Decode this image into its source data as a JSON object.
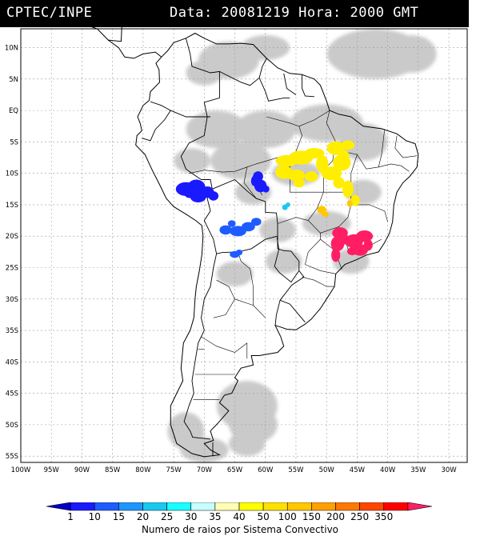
{
  "header": {
    "title": "CPTEC/INPE",
    "data_label": "Data:",
    "date": "20081219",
    "hora_label": "Hora:",
    "time": "2000 GMT"
  },
  "map": {
    "lat_labels": [
      "10N",
      "5N",
      "EQ",
      "5S",
      "10S",
      "15S",
      "20S",
      "25S",
      "30S",
      "35S",
      "40S",
      "45S",
      "50S",
      "55S"
    ],
    "lon_labels": [
      "100W",
      "95W",
      "90W",
      "85W",
      "80W",
      "75W",
      "70W",
      "65W",
      "60W",
      "55W",
      "50W",
      "45W",
      "40W",
      "35W",
      "30W"
    ],
    "extent": {
      "lon_min": -100,
      "lon_max": -27,
      "lat_min": -56,
      "lat_max": 13
    },
    "storm_clusters": [
      {
        "name": "acre-bolivia-cluster",
        "lon": -70.5,
        "lat": -12.8,
        "class": "1-10",
        "color": "#1a1aff"
      },
      {
        "name": "rondonia-cluster",
        "lon": -61.0,
        "lat": -11.8,
        "class": "1-10",
        "color": "#1a1aff"
      },
      {
        "name": "bolivia-south-cluster",
        "lon": -63.5,
        "lat": -18.5,
        "class": "10-15",
        "color": "#1e5cff"
      },
      {
        "name": "chaco-cluster",
        "lon": -64.8,
        "lat": -22.8,
        "class": "10-15",
        "color": "#1e5cff"
      },
      {
        "name": "matogrosso-cluster",
        "lon": -56.8,
        "lat": -15.2,
        "class": "20-25",
        "color": "#19c8f0"
      },
      {
        "name": "para-cluster",
        "lon": -55.0,
        "lat": -8.5,
        "class": "35-40",
        "color": "#ffee00"
      },
      {
        "name": "tocantins-cluster",
        "lon": -49.0,
        "lat": -9.0,
        "class": "35-40",
        "color": "#ffee00"
      },
      {
        "name": "goias-cluster",
        "lon": -50.5,
        "lat": -15.8,
        "class": "50-100",
        "color": "#ffc800"
      },
      {
        "name": "saopaulo-cluster",
        "lon": -48.0,
        "lat": -20.5,
        "class": "350",
        "color": "#ff1e64"
      },
      {
        "name": "rio-cluster",
        "lon": -44.5,
        "lat": -20.5,
        "class": "350",
        "color": "#ff1e64"
      }
    ]
  },
  "legend": {
    "ticks": [
      "1",
      "10",
      "15",
      "20",
      "25",
      "30",
      "35",
      "40",
      "50",
      "100",
      "150",
      "200",
      "250",
      "350"
    ],
    "colors": [
      "#0000c8",
      "#1a1aff",
      "#1e5cff",
      "#1e96ff",
      "#19c8f0",
      "#19ffff",
      "#c8ffff",
      "#ffffb4",
      "#ffff00",
      "#ffe100",
      "#ffc800",
      "#ffa000",
      "#ff7800",
      "#ff4600",
      "#ff0000",
      "#ff1e64"
    ],
    "title": "Numero de raios por Sistema Convectivo"
  }
}
